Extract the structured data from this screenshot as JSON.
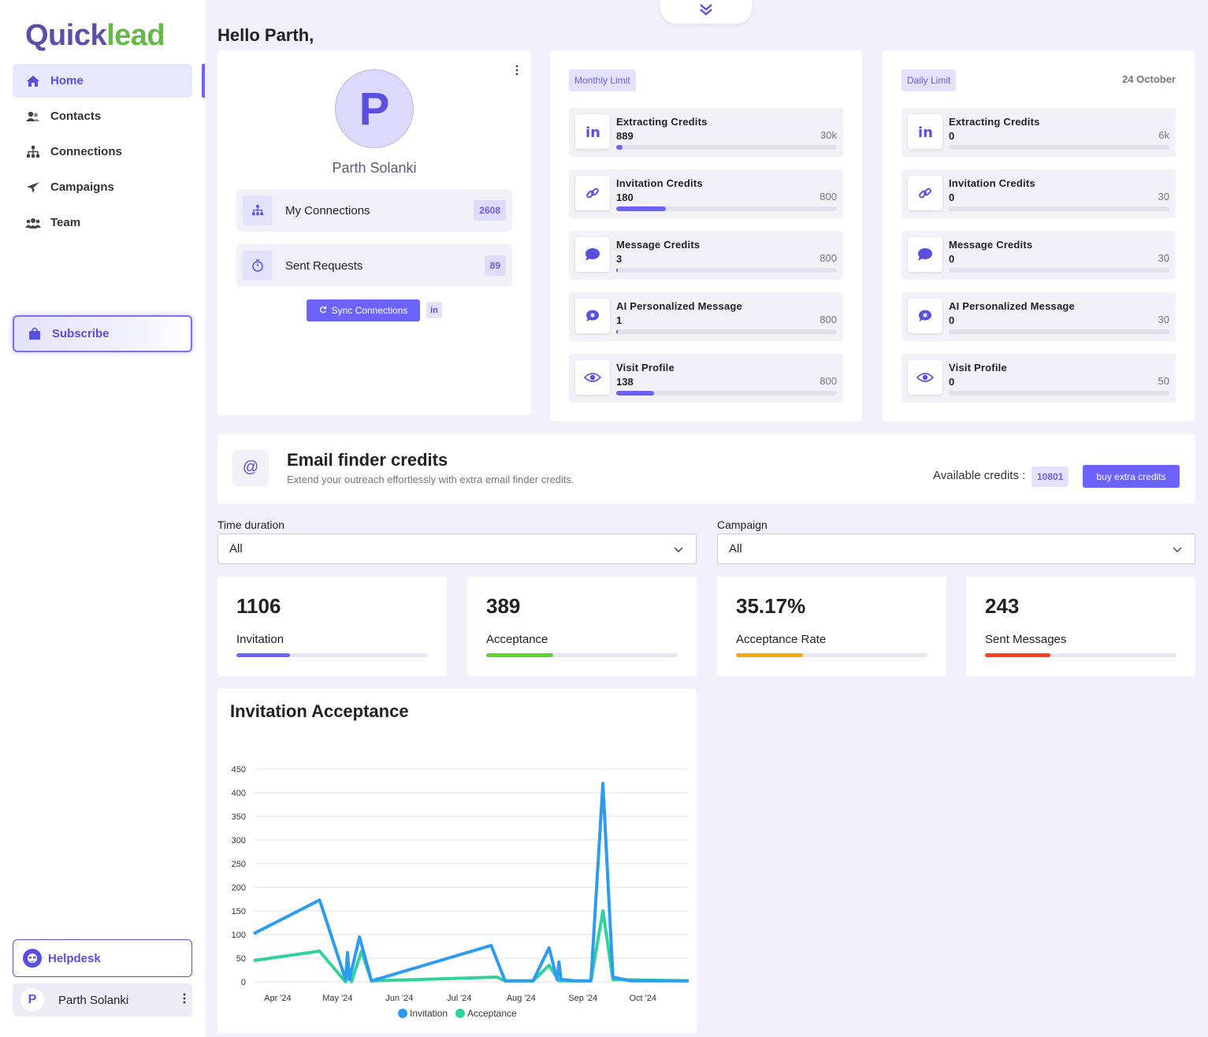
{
  "app": {
    "logo_part1": "Quick",
    "logo_part2": "lead"
  },
  "sidebar": {
    "items": [
      {
        "label": "Home",
        "icon": "home-icon"
      },
      {
        "label": "Contacts",
        "icon": "contacts-icon"
      },
      {
        "label": "Connections",
        "icon": "sitemap-icon"
      },
      {
        "label": "Campaigns",
        "icon": "plane-icon"
      },
      {
        "label": "Team",
        "icon": "team-icon"
      }
    ],
    "subscribe_label": "Subscribe",
    "helpdesk_label": "Helpdesk",
    "user_initial": "P",
    "user_name": "Parth Solanki"
  },
  "greeting": "Hello Parth,",
  "profile": {
    "initial": "P",
    "name": "Parth Solanki",
    "connections_label": "My Connections",
    "connections_count": "2608",
    "requests_label": "Sent Requests",
    "requests_count": "89",
    "sync_label": "Sync Connections",
    "linkedin_badge": "in"
  },
  "monthly": {
    "tag": "Monthly Limit",
    "credits": [
      {
        "name": "Extracting Credits",
        "used": "889",
        "max": "30k",
        "fraction": 0.0296,
        "icon": "linkedin-icon"
      },
      {
        "name": "Invitation Credits",
        "used": "180",
        "max": "800",
        "fraction": 0.225,
        "icon": "link-icon"
      },
      {
        "name": "Message Credits",
        "used": "3",
        "max": "800",
        "fraction": 0.00375,
        "icon": "message-icon"
      },
      {
        "name": "AI Personalized Message",
        "used": "1",
        "max": "800",
        "fraction": 0.00125,
        "icon": "ai-message-icon"
      },
      {
        "name": "Visit Profile",
        "used": "138",
        "max": "800",
        "fraction": 0.1725,
        "icon": "eye-icon"
      }
    ]
  },
  "daily": {
    "tag": "Daily Limit",
    "date": "24 October",
    "credits": [
      {
        "name": "Extracting Credits",
        "used": "0",
        "max": "6k",
        "fraction": 0,
        "icon": "linkedin-icon"
      },
      {
        "name": "Invitation Credits",
        "used": "0",
        "max": "30",
        "fraction": 0,
        "icon": "link-icon"
      },
      {
        "name": "Message Credits",
        "used": "0",
        "max": "30",
        "fraction": 0,
        "icon": "message-icon"
      },
      {
        "name": "AI Personalized Message",
        "used": "0",
        "max": "30",
        "fraction": 0,
        "icon": "ai-message-icon"
      },
      {
        "name": "Visit Profile",
        "used": "0",
        "max": "50",
        "fraction": 0,
        "icon": "eye-icon"
      }
    ]
  },
  "email_finder": {
    "icon_text": "@",
    "title": "Email finder credits",
    "subtitle": "Extend your outreach effortlessly with extra email finder credits.",
    "available_label": "Available credits :",
    "available_value": "10801",
    "buy_label": "buy extra credits"
  },
  "filters": {
    "time_label": "Time duration",
    "time_value": "All",
    "campaign_label": "Campaign",
    "campaign_value": "All"
  },
  "stats": [
    {
      "value": "1106",
      "label": "Invitation",
      "fraction": 0.28,
      "color": "#6c63ff"
    },
    {
      "value": "389",
      "label": "Acceptance",
      "fraction": 0.35,
      "color": "#5ed42c"
    },
    {
      "value": "35.17%",
      "label": "Acceptance Rate",
      "fraction": 0.3517,
      "color": "#fba70f"
    },
    {
      "value": "243",
      "label": "Sent Messages",
      "fraction": 0.34,
      "color": "#ff3d1f"
    }
  ],
  "chart": {
    "title": "Invitation Acceptance"
  },
  "chart_data": {
    "type": "line",
    "title": "Invitation Acceptance",
    "ylim": [
      0,
      450
    ],
    "yticks": [
      "0",
      "50",
      "100",
      "150",
      "200",
      "250",
      "300",
      "350",
      "400",
      "450"
    ],
    "xtick_labels": [
      "Apr '24",
      "May '24",
      "Jun '24",
      "Jul '24",
      "Aug '24",
      "Sep '24",
      "Oct '24"
    ],
    "xtick_dates": [
      "2024-04-01",
      "2024-05-01",
      "2024-06-01",
      "2024-07-01",
      "2024-08-01",
      "2024-09-01",
      "2024-10-01"
    ],
    "xlim": [
      "2024-03-20",
      "2024-10-24"
    ],
    "grid": true,
    "legend": "bottom-center",
    "series": [
      {
        "name": "Invitation",
        "color": "#2d9cf0",
        "points": [
          [
            "2024-03-20",
            102
          ],
          [
            "2024-04-22",
            173
          ],
          [
            "2024-05-05",
            5
          ],
          [
            "2024-05-06",
            62
          ],
          [
            "2024-05-07",
            5
          ],
          [
            "2024-05-12",
            95
          ],
          [
            "2024-05-18",
            2
          ],
          [
            "2024-07-17",
            77
          ],
          [
            "2024-07-24",
            2
          ],
          [
            "2024-08-07",
            2
          ],
          [
            "2024-08-15",
            72
          ],
          [
            "2024-08-19",
            5
          ],
          [
            "2024-08-20",
            42
          ],
          [
            "2024-08-21",
            5
          ],
          [
            "2024-08-28",
            2
          ],
          [
            "2024-09-05",
            2
          ],
          [
            "2024-09-11",
            420
          ],
          [
            "2024-09-16",
            10
          ],
          [
            "2024-09-25",
            2
          ],
          [
            "2024-10-24",
            2
          ]
        ]
      },
      {
        "name": "Acceptance",
        "color": "#2fd39a",
        "points": [
          [
            "2024-03-20",
            45
          ],
          [
            "2024-04-22",
            65
          ],
          [
            "2024-05-05",
            0
          ],
          [
            "2024-05-07",
            20
          ],
          [
            "2024-05-08",
            0
          ],
          [
            "2024-05-13",
            65
          ],
          [
            "2024-05-18",
            2
          ],
          [
            "2024-07-20",
            10
          ],
          [
            "2024-07-24",
            2
          ],
          [
            "2024-08-07",
            2
          ],
          [
            "2024-08-15",
            35
          ],
          [
            "2024-08-20",
            2
          ],
          [
            "2024-08-28",
            2
          ],
          [
            "2024-09-05",
            2
          ],
          [
            "2024-09-11",
            150
          ],
          [
            "2024-09-16",
            5
          ],
          [
            "2024-10-24",
            2
          ]
        ]
      }
    ]
  }
}
